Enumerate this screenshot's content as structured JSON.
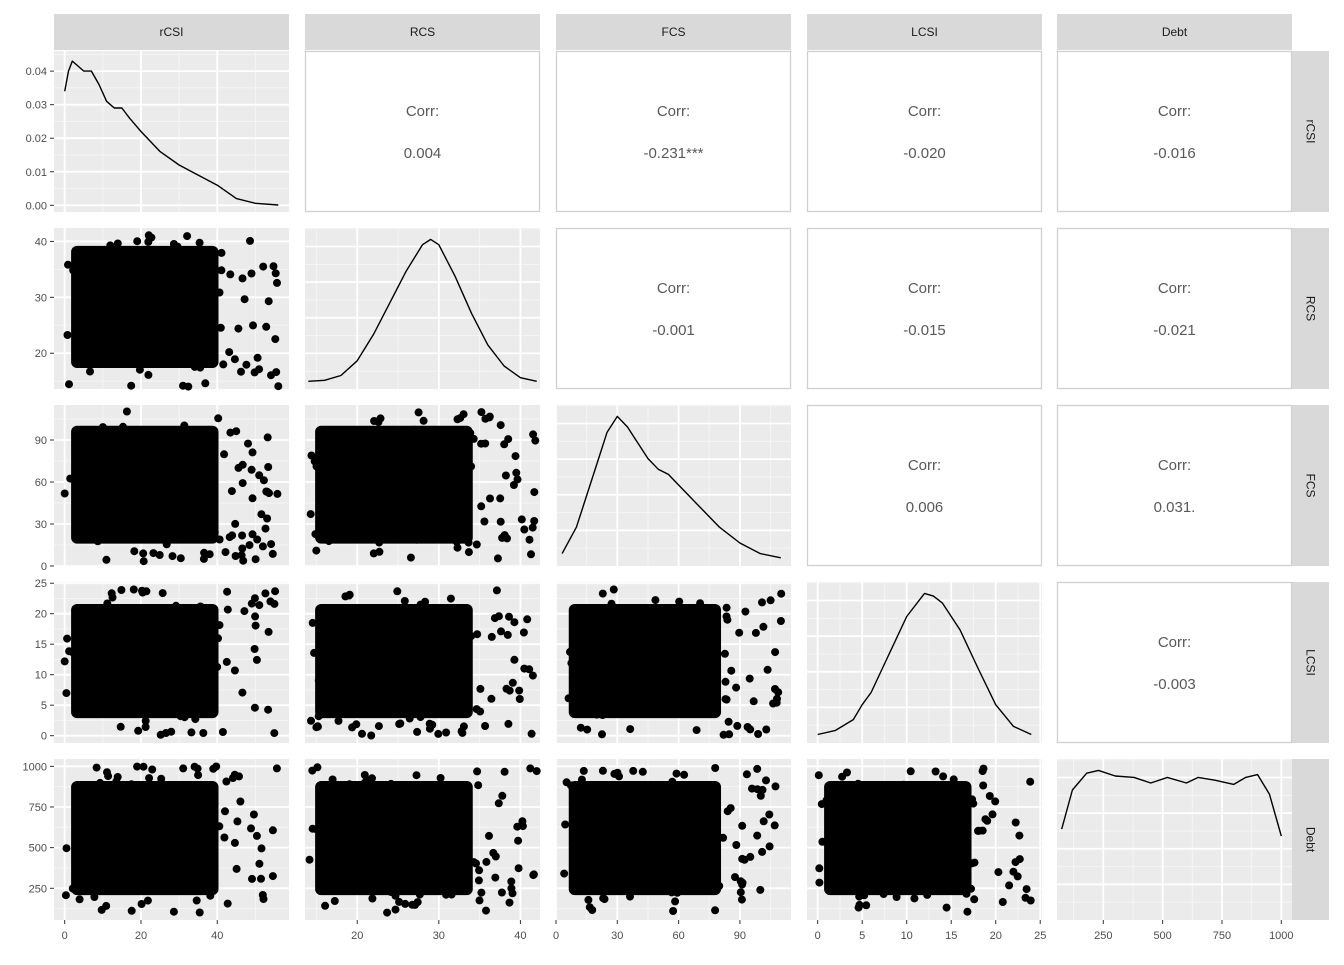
{
  "chart_data": {
    "type": "scatter",
    "variables": [
      "rCSI",
      "RCS",
      "FCS",
      "LCSI",
      "Debt"
    ],
    "corr_label": "Corr:",
    "correlations": [
      {
        "row": "rCSI",
        "col": "RCS",
        "value": "0.004"
      },
      {
        "row": "rCSI",
        "col": "FCS",
        "value": "-0.231***"
      },
      {
        "row": "rCSI",
        "col": "LCSI",
        "value": "-0.020"
      },
      {
        "row": "rCSI",
        "col": "Debt",
        "value": "-0.016"
      },
      {
        "row": "RCS",
        "col": "FCS",
        "value": "-0.001"
      },
      {
        "row": "RCS",
        "col": "LCSI",
        "value": "-0.015"
      },
      {
        "row": "RCS",
        "col": "Debt",
        "value": "-0.021"
      },
      {
        "row": "FCS",
        "col": "LCSI",
        "value": "0.006"
      },
      {
        "row": "FCS",
        "col": "Debt",
        "value": "0.031."
      },
      {
        "row": "LCSI",
        "col": "Debt",
        "value": "-0.003"
      }
    ],
    "axes": {
      "rCSI": {
        "range": [
          -2.8,
          58.8
        ],
        "ticks": [
          0,
          20,
          40
        ],
        "tick_labels": [
          "0",
          "20",
          "40"
        ]
      },
      "RCS": {
        "range": [
          13.6,
          42.4
        ],
        "ticks": [
          20,
          30,
          40
        ],
        "tick_labels": [
          "20",
          "30",
          "40"
        ]
      },
      "FCS": {
        "range": [
          0,
          115
        ],
        "ticks": [
          0,
          30,
          60,
          90
        ],
        "tick_labels": [
          "0",
          "30",
          "60",
          "90"
        ]
      },
      "LCSI": {
        "range": [
          -1.2,
          25.2
        ],
        "ticks": [
          0,
          5,
          10,
          15,
          20,
          25
        ],
        "tick_labels": [
          "0",
          "5",
          "10",
          "15",
          "20",
          "25"
        ]
      },
      "Debt": {
        "range": [
          55,
          1045
        ],
        "ticks": [
          250,
          500,
          750,
          1000
        ],
        "tick_labels": [
          "250",
          "500",
          "750",
          "1000"
        ]
      }
    },
    "density_axis": {
      "range": [
        -0.002,
        0.046
      ],
      "ticks": [
        0.0,
        0.01,
        0.02,
        0.03,
        0.04
      ],
      "tick_labels": [
        "0.00",
        "0.01",
        "0.02",
        "0.03",
        "0.04"
      ]
    },
    "densities": {
      "rCSI": {
        "x": [
          0,
          1,
          2,
          3,
          5,
          7,
          9,
          11,
          13,
          15,
          17,
          20,
          25,
          30,
          35,
          40,
          45,
          50,
          56
        ],
        "y": [
          0.034,
          0.04,
          0.043,
          0.042,
          0.04,
          0.04,
          0.036,
          0.031,
          0.029,
          0.029,
          0.026,
          0.022,
          0.016,
          0.012,
          0.009,
          0.006,
          0.002,
          0.0006,
          0.0001
        ]
      },
      "RCS": {
        "x": [
          14,
          16,
          18,
          20,
          22,
          24,
          26,
          28,
          29,
          30,
          32,
          34,
          36,
          38,
          40,
          42
        ],
        "y": [
          0.001,
          0.003,
          0.012,
          0.04,
          0.09,
          0.15,
          0.21,
          0.26,
          0.27,
          0.26,
          0.2,
          0.13,
          0.07,
          0.03,
          0.008,
          0.001
        ]
      },
      "FCS": {
        "x": [
          3,
          10,
          20,
          25,
          30,
          35,
          40,
          45,
          50,
          55,
          60,
          70,
          80,
          90,
          100,
          110
        ],
        "y": [
          0.001,
          0.006,
          0.018,
          0.024,
          0.027,
          0.025,
          0.022,
          0.019,
          0.017,
          0.016,
          0.014,
          0.01,
          0.006,
          0.003,
          0.001,
          0.0002
        ]
      },
      "LCSI": {
        "x": [
          0,
          2,
          4,
          5,
          6,
          8,
          10,
          12,
          13,
          14,
          16,
          18,
          20,
          22,
          24
        ],
        "y": [
          0.001,
          0.004,
          0.012,
          0.023,
          0.032,
          0.06,
          0.088,
          0.105,
          0.103,
          0.098,
          0.078,
          0.05,
          0.023,
          0.007,
          0.001
        ]
      },
      "Debt": {
        "x": [
          75,
          120,
          180,
          230,
          300,
          380,
          450,
          520,
          600,
          650,
          720,
          800,
          850,
          900,
          950,
          1000
        ],
        "y": [
          0.0006,
          0.00088,
          0.001,
          0.00102,
          0.00098,
          0.00097,
          0.00093,
          0.00097,
          0.00093,
          0.00097,
          0.00095,
          0.00092,
          0.00097,
          0.00099,
          0.00085,
          0.00055
        ]
      }
    },
    "scatter_extents": {
      "rCSI": [
        0,
        56
      ],
      "RCS": [
        14,
        42
      ],
      "FCS": [
        3,
        111
      ],
      "LCSI": [
        0,
        24
      ],
      "Debt": [
        100,
        1000
      ]
    },
    "grid": true,
    "legend": "none"
  }
}
